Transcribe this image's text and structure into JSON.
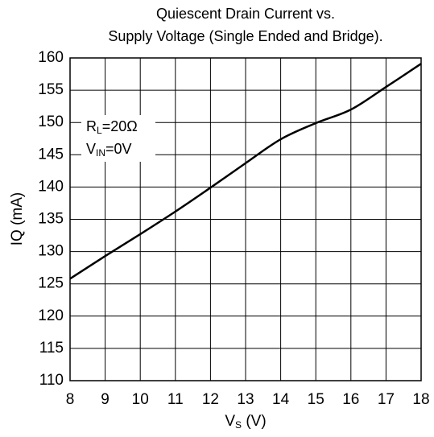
{
  "chart_data": {
    "type": "line",
    "title": [
      "Quiescent Drain Current vs.",
      "Supply Voltage (Single Ended and Bridge)."
    ],
    "x_label": {
      "main": "V",
      "sub": "S",
      "rest": " (V)"
    },
    "y_label": "IQ (mA)",
    "annotations": [
      {
        "main": "R",
        "sub": "L",
        "rest": "=20Ω"
      },
      {
        "main": "V",
        "sub": "IN",
        "rest": "=0V"
      }
    ],
    "x": [
      8,
      9,
      10,
      11,
      12,
      13,
      14,
      15,
      16,
      17,
      18
    ],
    "series": [
      {
        "name": "IQ",
        "color": "#000000",
        "values": [
          125.8,
          129.3,
          132.7,
          136.2,
          139.9,
          143.7,
          147.4,
          149.9,
          152.0,
          155.5,
          159.1
        ]
      }
    ],
    "xlim": [
      8,
      18
    ],
    "xticks": [
      8,
      9,
      10,
      11,
      12,
      13,
      14,
      15,
      16,
      17,
      18
    ],
    "ylim": [
      110,
      160
    ],
    "yticks": [
      110,
      115,
      120,
      125,
      130,
      135,
      140,
      145,
      150,
      155,
      160
    ],
    "grid": true
  }
}
